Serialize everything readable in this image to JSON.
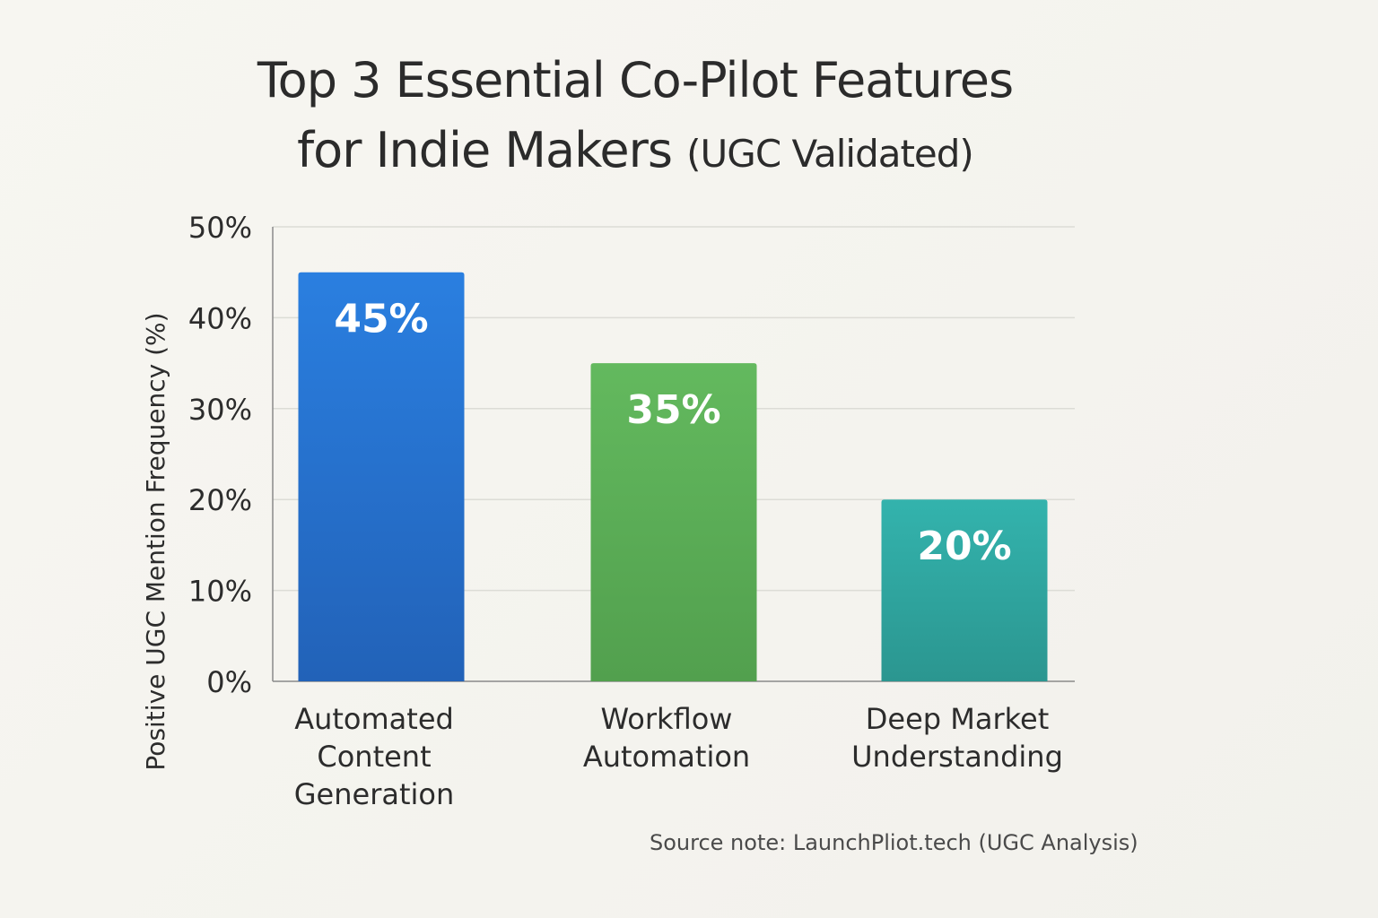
{
  "title": {
    "line1": "Top 3 Essential Co-Pilot Features",
    "line2_main": "for Indie Makers",
    "line2_sub": "(UGC Validated)"
  },
  "source_note": "Source note: LaunchPliot.tech (UGC Analysis)",
  "chart_data": {
    "type": "bar",
    "title": "Top 3 Essential Co-Pilot Features for Indie Makers (UGC Validated)",
    "categories": [
      [
        "Automated",
        "Content",
        "Generation"
      ],
      [
        "Workflow",
        "Automation"
      ],
      [
        "Deep Market",
        "Understanding"
      ]
    ],
    "values": [
      45,
      35,
      20
    ],
    "data_labels": [
      "45%",
      "35%",
      "20%"
    ],
    "bar_colors": [
      [
        "#2a7fe0",
        "#2262b8"
      ],
      [
        "#63b95e",
        "#52a04e"
      ],
      [
        "#33b3ad",
        "#2b9690"
      ]
    ],
    "xlabel": "",
    "ylabel": "Positive UGC Mention Frequency (%)",
    "ylim": [
      0,
      50
    ],
    "yticks": [
      0,
      10,
      20,
      30,
      40,
      50
    ],
    "ytick_labels": [
      "0%",
      "10%",
      "20%",
      "30%",
      "40%",
      "50%"
    ],
    "grid": true
  }
}
